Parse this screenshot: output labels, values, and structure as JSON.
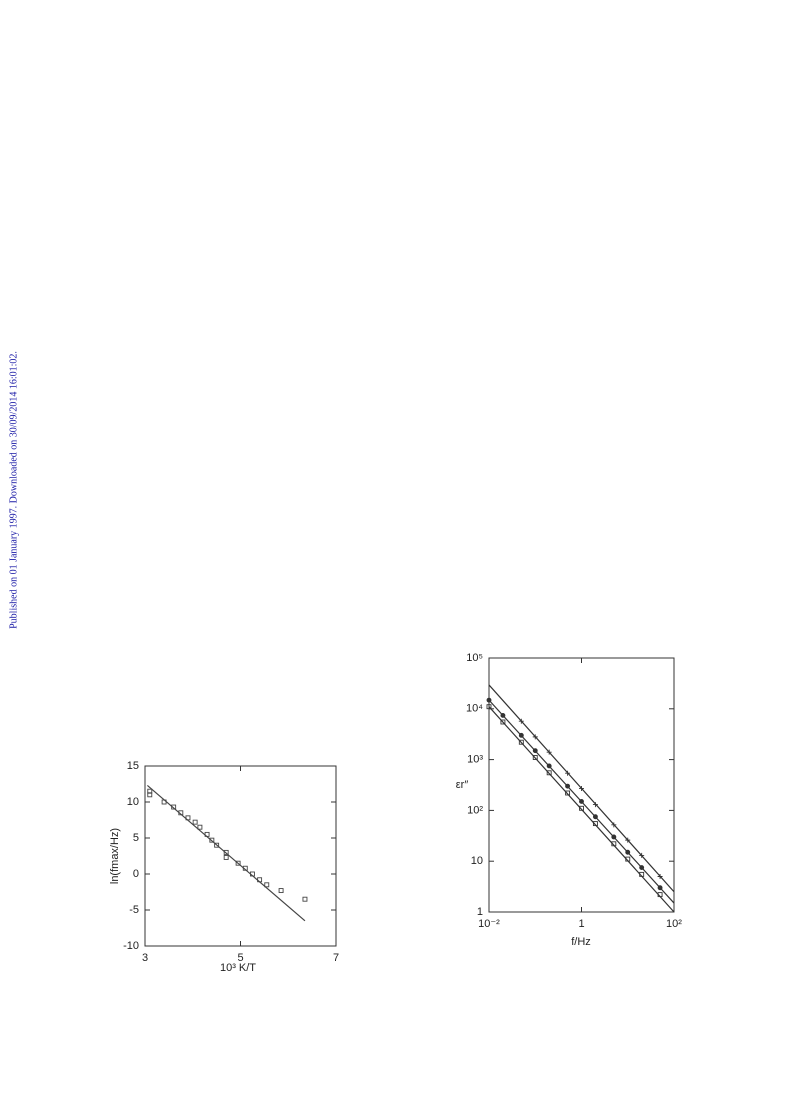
{
  "watermark": "Published on 01 January 1997. Downloaded on 30/09/2014 16:01:02.",
  "chart_data": [
    {
      "type": "scatter",
      "xlabel": "10³ K/T",
      "ylabel": "ln(fmax/Hz)",
      "xlim": [
        3,
        7
      ],
      "ylim": [
        -10,
        15
      ],
      "xticks": [
        3,
        5,
        7
      ],
      "yticks": [
        -10,
        -5,
        0,
        5,
        10,
        15
      ],
      "series": [
        {
          "marker": "square",
          "color": "#444444",
          "x": [
            3.1,
            3.1,
            3.4,
            3.6,
            3.75,
            3.9,
            4.05,
            4.15,
            4.3,
            4.4,
            4.5,
            4.7,
            4.7,
            4.95,
            5.1,
            5.25,
            5.4,
            5.55,
            5.85,
            6.35
          ],
          "values": [
            11.5,
            11,
            10,
            9.3,
            8.5,
            7.8,
            7.2,
            6.5,
            5.5,
            4.7,
            4,
            3,
            2.3,
            1.5,
            0.8,
            0,
            -0.8,
            -1.5,
            -2.3,
            -3.5
          ]
        },
        {
          "line": true,
          "color": "#444444",
          "x": [
            3.05,
            6.35
          ],
          "values": [
            12.3,
            -6.5
          ]
        }
      ]
    },
    {
      "type": "scatter",
      "xlabel": "f/Hz",
      "ylabel": "εr″",
      "xlog": true,
      "ylog": true,
      "xlim": [
        0.01,
        100
      ],
      "ylim": [
        1,
        100000
      ],
      "xticks": [
        {
          "value": 0.01,
          "label": "10⁻²"
        },
        1,
        {
          "value": 100,
          "label": "10²"
        }
      ],
      "yticks": [
        1,
        10,
        {
          "value": 100,
          "label": "10²"
        },
        {
          "value": 1000,
          "label": "10³"
        },
        {
          "value": 10000,
          "label": "10⁴"
        },
        {
          "value": 100000,
          "label": "10⁵"
        }
      ],
      "series": [
        {
          "line": true,
          "color": "#333333",
          "x": [
            0.01,
            100
          ],
          "values": [
            29500,
            2.5
          ]
        },
        {
          "line": true,
          "color": "#333333",
          "x": [
            0.01,
            100
          ],
          "values": [
            14800,
            1.5
          ]
        },
        {
          "line": true,
          "color": "#333333",
          "x": [
            0.01,
            100
          ],
          "values": [
            11000,
            1
          ]
        },
        {
          "marker": "plus",
          "color": "#333333",
          "x": [
            0.05,
            0.1,
            0.2,
            0.5,
            1,
            2,
            5,
            10,
            20,
            50
          ],
          "values": [
            5700,
            2800,
            1400,
            540,
            270,
            130,
            52,
            26,
            13,
            5
          ]
        },
        {
          "marker": "circle",
          "color": "#333333",
          "x": [
            0.01,
            0.02,
            0.05,
            0.1,
            0.2,
            0.5,
            1,
            2,
            5,
            10,
            20,
            50
          ],
          "values": [
            14800,
            7400,
            3000,
            1500,
            750,
            300,
            150,
            75,
            30,
            15,
            7.5,
            3
          ]
        },
        {
          "marker": "square",
          "color": "#333333",
          "x": [
            0.01,
            0.02,
            0.05,
            0.1,
            0.2,
            0.5,
            1,
            2,
            5,
            10,
            20,
            50
          ],
          "values": [
            11000,
            5500,
            2200,
            1100,
            550,
            220,
            110,
            55,
            22,
            11,
            5.5,
            2.2
          ]
        }
      ]
    }
  ]
}
